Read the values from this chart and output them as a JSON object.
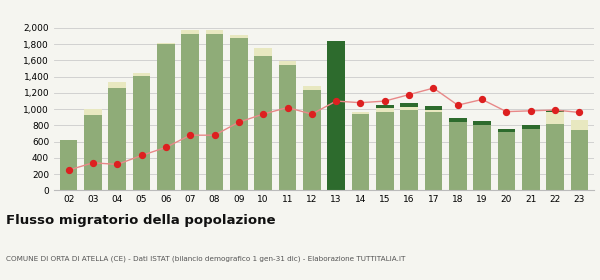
{
  "years": [
    "02",
    "03",
    "04",
    "05",
    "06",
    "07",
    "08",
    "09",
    "10",
    "11",
    "12",
    "13",
    "14",
    "15",
    "16",
    "17",
    "18",
    "19",
    "20",
    "21",
    "22",
    "23"
  ],
  "iscritti_comuni": [
    620,
    930,
    1260,
    1410,
    1800,
    1920,
    1920,
    1880,
    1650,
    1540,
    1240,
    0,
    940,
    960,
    990,
    960,
    840,
    800,
    720,
    760,
    820,
    750
  ],
  "iscritti_estero": [
    0,
    70,
    80,
    40,
    10,
    55,
    55,
    30,
    100,
    50,
    50,
    0,
    30,
    50,
    40,
    30,
    0,
    0,
    0,
    0,
    140,
    120
  ],
  "iscritti_altri": [
    0,
    0,
    0,
    0,
    0,
    0,
    0,
    0,
    0,
    0,
    0,
    1840,
    0,
    40,
    50,
    50,
    50,
    60,
    40,
    50,
    30,
    0
  ],
  "cancellati": [
    250,
    340,
    320,
    430,
    530,
    680,
    680,
    840,
    940,
    1020,
    940,
    1100,
    1080,
    1100,
    1180,
    1260,
    1050,
    1120,
    970,
    980,
    990,
    960
  ],
  "color_comuni": "#8fac78",
  "color_estero": "#e8e8c0",
  "color_altri": "#2d6b2d",
  "color_cancellati": "#dd2020",
  "color_cancellati_line": "#e88888",
  "bg_color": "#f5f5f0",
  "grid_color": "#cccccc",
  "title": "Flusso migratorio della popolazione",
  "subtitle": "COMUNE DI ORTA DI ATELLA (CE) - Dati ISTAT (bilancio demografico 1 gen-31 dic) - Elaborazione TUTTITALIA.IT",
  "ylim": [
    0,
    2000
  ],
  "yticks": [
    0,
    200,
    400,
    600,
    800,
    1000,
    1200,
    1400,
    1600,
    1800,
    2000
  ]
}
